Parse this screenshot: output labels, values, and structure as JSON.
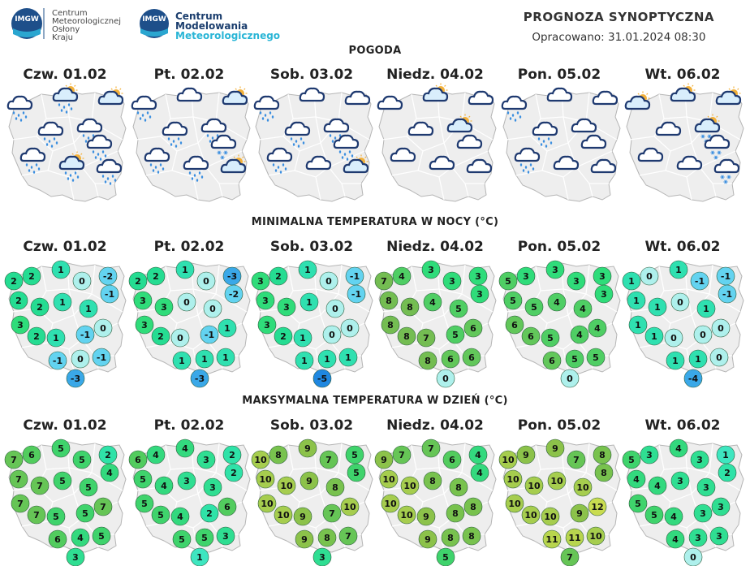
{
  "header": {
    "logo1_lines": [
      "Centrum",
      "Meteorologicznej",
      "Osłony",
      "Kraju"
    ],
    "logo1_badge": "IMGW",
    "logo2_line1": "Centrum",
    "logo2_line2": "Modelowania",
    "logo2_line3": "Meteorologicznego",
    "logo2_badge": "IMGW",
    "title": "PROGNOZA SYNOPTYCZNA",
    "prepared": "Opracowano: 31.01.2024 08:30"
  },
  "colors": {
    "map_fill": "#eeeeee",
    "map_border": "#b5b5b5",
    "cloud_outline": "#1f3a70",
    "sun": "#f3b13a",
    "rain": "#3c8fe0"
  },
  "days": [
    "Czw. 01.02",
    "Pt. 02.02",
    "Sob. 03.02",
    "Niedz. 04.02",
    "Pon. 05.02",
    "Wt. 06.02"
  ],
  "sections": {
    "weather": "POGODA",
    "min_temp": "MINIMALNA TEMPERATURA W NOCY (°C)",
    "max_temp": "MAKSYMALNA TEMPERATURA W DZIEŃ (°C)"
  },
  "weather_icons": [
    [
      "cloud-rain",
      "partly-cloudy-rain",
      "partly-cloudy",
      "cloud-rain",
      "cloud-rain",
      "cloud-rain",
      "cloud-rain",
      "partly-cloudy-rain",
      "cloud-rain"
    ],
    [
      "cloud-rain",
      "cloud",
      "partly-cloudy",
      "cloud-rain",
      "cloud-rain",
      "cloud-snow",
      "cloud-rain",
      "cloud-rain",
      "partly-cloudy"
    ],
    [
      "cloud-rain",
      "cloud",
      "cloud",
      "cloud-rain",
      "cloud-rain",
      "cloud-rain",
      "cloud-rain",
      "cloud",
      "partly-cloudy"
    ],
    [
      "cloud",
      "partly-cloudy",
      "cloud",
      "cloud",
      "partly-cloudy",
      "cloud",
      "cloud",
      "cloud",
      "cloud"
    ],
    [
      "cloud-rain",
      "cloud",
      "cloud",
      "cloud-rain",
      "cloud",
      "cloud",
      "cloud-rain",
      "cloud",
      "cloud"
    ],
    [
      "partly-cloudy",
      "partly-cloudy",
      "partly-cloudy",
      "cloud",
      "partly-cloudy-snow",
      "cloud-snow",
      "cloud",
      "cloud",
      "cloud-snow"
    ]
  ],
  "min_temps": [
    [
      "2",
      "2",
      "1",
      "0",
      "-2",
      "-1",
      "2",
      "2",
      "1",
      "1",
      "3",
      "2",
      "1",
      "-1",
      "0",
      "-1",
      "0",
      "-1",
      "-3"
    ],
    [
      "2",
      "2",
      "1",
      "0",
      "-3",
      "-2",
      "3",
      "3",
      "0",
      "0",
      "3",
      "2",
      "0",
      "-1",
      "1",
      "1",
      "1",
      "1",
      "-3"
    ],
    [
      "3",
      "2",
      "1",
      "0",
      "-1",
      "-1",
      "3",
      "3",
      "1",
      "0",
      "3",
      "2",
      "1",
      "0",
      "0",
      "1",
      "1",
      "1",
      "-5"
    ],
    [
      "7",
      "4",
      "3",
      "3",
      "3",
      "3",
      "8",
      "8",
      "4",
      "5",
      "8",
      "8",
      "7",
      "5",
      "6",
      "8",
      "6",
      "6",
      "0"
    ],
    [
      "5",
      "3",
      "3",
      "3",
      "3",
      "3",
      "5",
      "5",
      "4",
      "4",
      "6",
      "6",
      "5",
      "4",
      "4",
      "6",
      "5",
      "5",
      "0"
    ],
    [
      "1",
      "0",
      "1",
      "-1",
      "-1",
      "-1",
      "1",
      "1",
      "0",
      "1",
      "1",
      "1",
      "0",
      "0",
      "0",
      "1",
      "1",
      "0",
      "-4"
    ]
  ],
  "max_temps": [
    [
      "7",
      "6",
      "5",
      "5",
      "2",
      "4",
      "7",
      "7",
      "5",
      "5",
      "7",
      "7",
      "5",
      "5",
      "7",
      "6",
      "4",
      "5",
      "3"
    ],
    [
      "6",
      "4",
      "4",
      "3",
      "2",
      "2",
      "5",
      "4",
      "3",
      "3",
      "5",
      "5",
      "4",
      "2",
      "6",
      "5",
      "5",
      "3",
      "1"
    ],
    [
      "10",
      "8",
      "9",
      "7",
      "5",
      "5",
      "10",
      "10",
      "9",
      "8",
      "10",
      "10",
      "9",
      "7",
      "10",
      "9",
      "8",
      "7",
      "3"
    ],
    [
      "9",
      "7",
      "7",
      "6",
      "4",
      "4",
      "10",
      "10",
      "8",
      "8",
      "10",
      "10",
      "9",
      "8",
      "8",
      "9",
      "8",
      "8",
      "5"
    ],
    [
      "10",
      "9",
      "9",
      "7",
      "8",
      "8",
      "10",
      "10",
      "10",
      "10",
      "10",
      "10",
      "10",
      "9",
      "12",
      "11",
      "11",
      "10",
      "7"
    ],
    [
      "5",
      "3",
      "4",
      "3",
      "1",
      "2",
      "4",
      "4",
      "3",
      "3",
      "5",
      "5",
      "4",
      "3",
      "3",
      "4",
      "3",
      "3",
      "0"
    ]
  ]
}
